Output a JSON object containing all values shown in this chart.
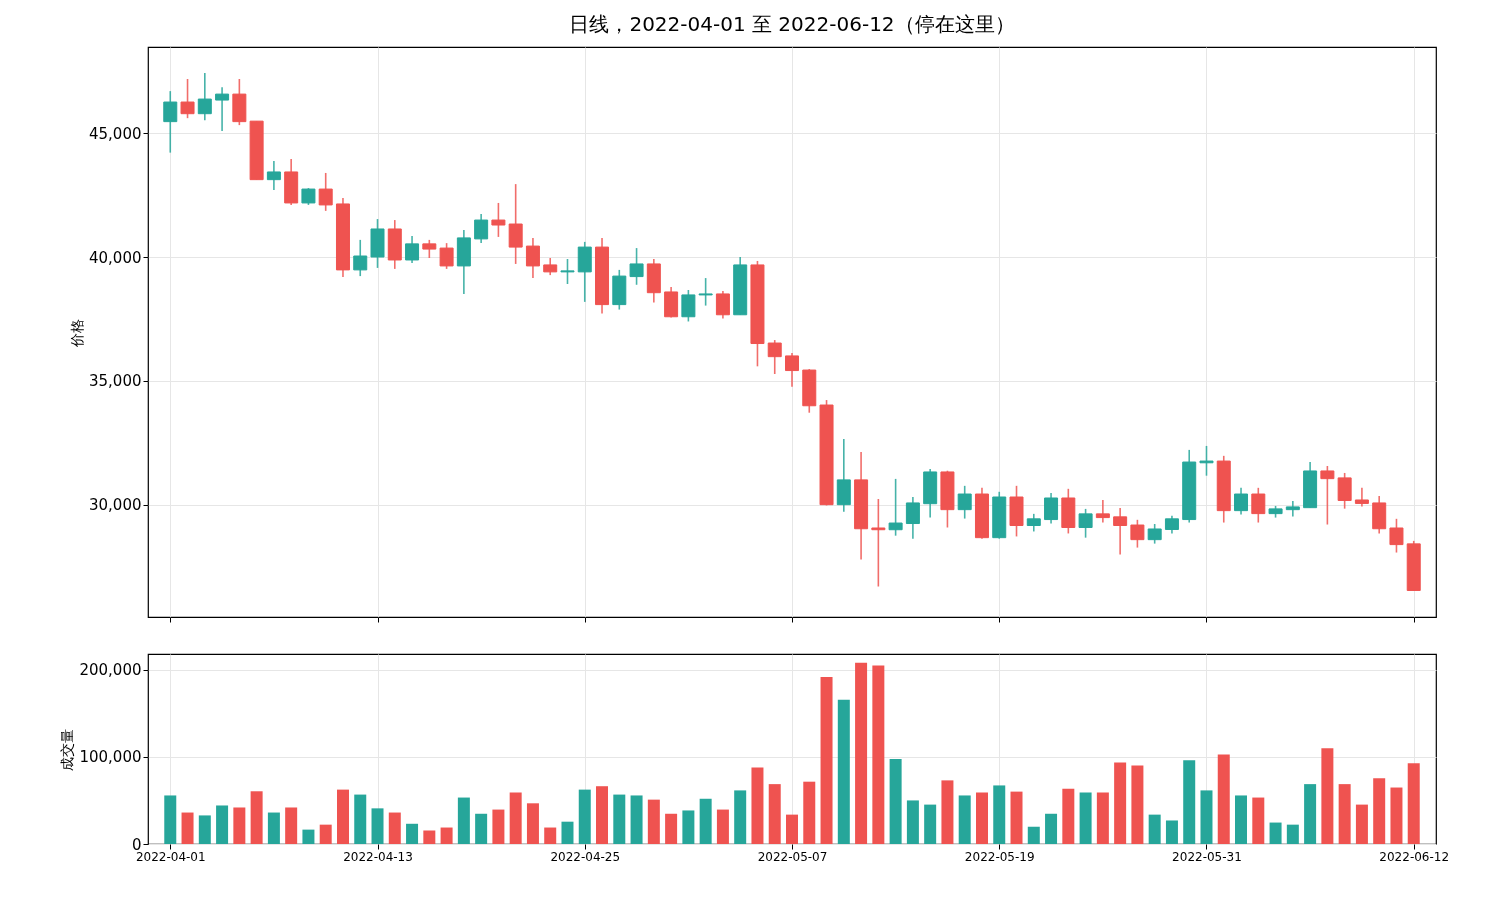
{
  "chart_data": [
    {
      "type": "candlestick",
      "title": "日线，2022-04-01 至 2022-06-12（停在这里）",
      "ylabel": "价格",
      "x": [
        "2022-04-01",
        "2022-04-02",
        "2022-04-03",
        "2022-04-04",
        "2022-04-05",
        "2022-04-06",
        "2022-04-07",
        "2022-04-08",
        "2022-04-09",
        "2022-04-10",
        "2022-04-11",
        "2022-04-12",
        "2022-04-13",
        "2022-04-14",
        "2022-04-15",
        "2022-04-16",
        "2022-04-17",
        "2022-04-18",
        "2022-04-19",
        "2022-04-20",
        "2022-04-21",
        "2022-04-22",
        "2022-04-23",
        "2022-04-24",
        "2022-04-25",
        "2022-04-26",
        "2022-04-27",
        "2022-04-28",
        "2022-04-29",
        "2022-04-30",
        "2022-05-01",
        "2022-05-02",
        "2022-05-03",
        "2022-05-04",
        "2022-05-05",
        "2022-05-06",
        "2022-05-07",
        "2022-05-08",
        "2022-05-09",
        "2022-05-10",
        "2022-05-11",
        "2022-05-12",
        "2022-05-13",
        "2022-05-14",
        "2022-05-15",
        "2022-05-16",
        "2022-05-17",
        "2022-05-18",
        "2022-05-19",
        "2022-05-20",
        "2022-05-21",
        "2022-05-22",
        "2022-05-23",
        "2022-05-24",
        "2022-05-25",
        "2022-05-26",
        "2022-05-27",
        "2022-05-28",
        "2022-05-29",
        "2022-05-30",
        "2022-05-31",
        "2022-06-01",
        "2022-06-02",
        "2022-06-03",
        "2022-06-04",
        "2022-06-05",
        "2022-06-06",
        "2022-06-07",
        "2022-06-08",
        "2022-06-09",
        "2022-06-10",
        "2022-06-11",
        "2022-06-12"
      ],
      "ohlc": [
        [
          45460,
          46690,
          44210,
          46250
        ],
        [
          46250,
          47180,
          45600,
          45780
        ],
        [
          45780,
          47420,
          45520,
          46370
        ],
        [
          46330,
          46850,
          45080,
          46570
        ],
        [
          46570,
          47180,
          45320,
          45460
        ],
        [
          45480,
          45480,
          43120,
          43120
        ],
        [
          43120,
          43870,
          42700,
          43430
        ],
        [
          43430,
          43950,
          42100,
          42180
        ],
        [
          42180,
          42780,
          42100,
          42740
        ],
        [
          42740,
          43390,
          41860,
          42100
        ],
        [
          42140,
          42380,
          39190,
          39480
        ],
        [
          39480,
          40690,
          39230,
          40040
        ],
        [
          40000,
          41530,
          39560,
          41130
        ],
        [
          41130,
          41490,
          39520,
          39880
        ],
        [
          39880,
          40850,
          39760,
          40530
        ],
        [
          40530,
          40690,
          39960,
          40320
        ],
        [
          40360,
          40560,
          39520,
          39640
        ],
        [
          39640,
          41090,
          38510,
          40770
        ],
        [
          40730,
          41730,
          40560,
          41490
        ],
        [
          41490,
          42180,
          40810,
          41290
        ],
        [
          41330,
          42940,
          39720,
          40400
        ],
        [
          40440,
          40770,
          39150,
          39640
        ],
        [
          39680,
          39960,
          39270,
          39400
        ],
        [
          39400,
          39920,
          38910,
          39440
        ],
        [
          39400,
          40610,
          38190,
          40400
        ],
        [
          40400,
          40770,
          37720,
          38080
        ],
        [
          38080,
          39480,
          37880,
          39230
        ],
        [
          39210,
          40360,
          38880,
          39720
        ],
        [
          39720,
          39920,
          38160,
          38560
        ],
        [
          38590,
          38790,
          37560,
          37590
        ],
        [
          37590,
          38670,
          37400,
          38470
        ],
        [
          38470,
          39150,
          38040,
          38510
        ],
        [
          38510,
          38630,
          37520,
          37670
        ],
        [
          37670,
          40000,
          37670,
          39680
        ],
        [
          39680,
          39840,
          35590,
          36510
        ],
        [
          36530,
          36650,
          35280,
          35980
        ],
        [
          36010,
          36130,
          34770,
          35420
        ],
        [
          35440,
          35480,
          33720,
          34000
        ],
        [
          34030,
          34230,
          29980,
          30010
        ],
        [
          30010,
          32660,
          29730,
          31010
        ],
        [
          31010,
          32140,
          27800,
          29040
        ],
        [
          29070,
          30240,
          26710,
          29000
        ],
        [
          29000,
          31050,
          28760,
          29270
        ],
        [
          29250,
          30320,
          28640,
          30080
        ],
        [
          30050,
          31450,
          29490,
          31330
        ],
        [
          31330,
          31380,
          29090,
          29810
        ],
        [
          29810,
          30770,
          29450,
          30440
        ],
        [
          30440,
          30690,
          28640,
          28680
        ],
        [
          28680,
          30530,
          28640,
          30320
        ],
        [
          30320,
          30770,
          28730,
          29170
        ],
        [
          29170,
          29640,
          28930,
          29440
        ],
        [
          29410,
          30480,
          29250,
          30280
        ],
        [
          30280,
          30650,
          28850,
          29090
        ],
        [
          29090,
          29840,
          28680,
          29640
        ],
        [
          29640,
          30200,
          29290,
          29490
        ],
        [
          29520,
          29880,
          28000,
          29170
        ],
        [
          29190,
          29400,
          28280,
          28600
        ],
        [
          28600,
          29230,
          28440,
          29030
        ],
        [
          29010,
          29560,
          28850,
          29440
        ],
        [
          29410,
          32220,
          29290,
          31730
        ],
        [
          31700,
          32380,
          31180,
          31770
        ],
        [
          31770,
          31980,
          29290,
          29770
        ],
        [
          29770,
          30690,
          29610,
          30440
        ],
        [
          30440,
          30690,
          29290,
          29650
        ],
        [
          29650,
          29960,
          29490,
          29840
        ],
        [
          29810,
          30160,
          29530,
          29920
        ],
        [
          29890,
          31730,
          29890,
          31370
        ],
        [
          31370,
          31570,
          29210,
          31060
        ],
        [
          31090,
          31290,
          29850,
          30180
        ],
        [
          30200,
          30690,
          29940,
          30060
        ],
        [
          30080,
          30360,
          28850,
          29040
        ],
        [
          29070,
          29440,
          28080,
          28400
        ],
        [
          28430,
          28550,
          26540,
          26550
        ]
      ],
      "colors": [
        "#26a69a",
        "#ef5350",
        "#26a69a",
        "#26a69a",
        "#ef5350",
        "#ef5350",
        "#26a69a",
        "#ef5350",
        "#26a69a",
        "#ef5350",
        "#ef5350",
        "#26a69a",
        "#26a69a",
        "#ef5350",
        "#26a69a",
        "#ef5350",
        "#ef5350",
        "#26a69a",
        "#26a69a",
        "#ef5350",
        "#ef5350",
        "#ef5350",
        "#ef5350",
        "#26a69a",
        "#26a69a",
        "#ef5350",
        "#26a69a",
        "#26a69a",
        "#ef5350",
        "#ef5350",
        "#26a69a",
        "#26a69a",
        "#ef5350",
        "#26a69a",
        "#ef5350",
        "#ef5350",
        "#ef5350",
        "#ef5350",
        "#ef5350",
        "#26a69a",
        "#ef5350",
        "#ef5350",
        "#26a69a",
        "#26a69a",
        "#26a69a",
        "#ef5350",
        "#26a69a",
        "#ef5350",
        "#26a69a",
        "#ef5350",
        "#26a69a",
        "#26a69a",
        "#ef5350",
        "#26a69a",
        "#ef5350",
        "#ef5350",
        "#ef5350",
        "#26a69a",
        "#26a69a",
        "#26a69a",
        "#26a69a",
        "#ef5350",
        "#26a69a",
        "#ef5350",
        "#26a69a",
        "#26a69a",
        "#26a69a",
        "#ef5350",
        "#ef5350",
        "#ef5350",
        "#ef5350",
        "#ef5350",
        "#ef5350"
      ],
      "xlim": [
        "2022-03-31",
        "2022-06-13"
      ],
      "xticks": [
        "2022-04-01",
        "2022-04-13",
        "2022-04-25",
        "2022-05-07",
        "2022-05-19",
        "2022-05-31",
        "2022-06-12"
      ],
      "ylim": [
        25480,
        48470
      ],
      "yticks": [
        {
          "value": 30000,
          "label": "30,000"
        },
        {
          "value": 35000,
          "label": "35,000"
        },
        {
          "value": 40000,
          "label": "40,000"
        },
        {
          "value": 45000,
          "label": "45,000"
        }
      ],
      "grid": true,
      "tick_labels": "y"
    },
    {
      "type": "bar",
      "ylabel": "成交量",
      "x": [
        "2022-04-01",
        "2022-04-02",
        "2022-04-03",
        "2022-04-04",
        "2022-04-05",
        "2022-04-06",
        "2022-04-07",
        "2022-04-08",
        "2022-04-09",
        "2022-04-10",
        "2022-04-11",
        "2022-04-12",
        "2022-04-13",
        "2022-04-14",
        "2022-04-15",
        "2022-04-16",
        "2022-04-17",
        "2022-04-18",
        "2022-04-19",
        "2022-04-20",
        "2022-04-21",
        "2022-04-22",
        "2022-04-23",
        "2022-04-24",
        "2022-04-25",
        "2022-04-26",
        "2022-04-27",
        "2022-04-28",
        "2022-04-29",
        "2022-04-30",
        "2022-05-01",
        "2022-05-02",
        "2022-05-03",
        "2022-05-04",
        "2022-05-05",
        "2022-05-06",
        "2022-05-07",
        "2022-05-08",
        "2022-05-09",
        "2022-05-10",
        "2022-05-11",
        "2022-05-12",
        "2022-05-13",
        "2022-05-14",
        "2022-05-15",
        "2022-05-16",
        "2022-05-17",
        "2022-05-18",
        "2022-05-19",
        "2022-05-20",
        "2022-05-21",
        "2022-05-22",
        "2022-05-23",
        "2022-05-24",
        "2022-05-25",
        "2022-05-26",
        "2022-05-27",
        "2022-05-28",
        "2022-05-29",
        "2022-05-30",
        "2022-05-31",
        "2022-06-01",
        "2022-06-02",
        "2022-06-03",
        "2022-06-04",
        "2022-06-05",
        "2022-06-06",
        "2022-06-07",
        "2022-06-08",
        "2022-06-09",
        "2022-06-10",
        "2022-06-11",
        "2022-06-12"
      ],
      "values": [
        55700,
        36100,
        32800,
        44200,
        41900,
        60500,
        36100,
        41900,
        16500,
        22200,
        62400,
        56700,
        40900,
        36100,
        23200,
        15500,
        18900,
        53300,
        34700,
        39500,
        59100,
        46700,
        18900,
        25600,
        62400,
        66300,
        56700,
        55700,
        50900,
        34700,
        38500,
        51900,
        39500,
        61500,
        87800,
        68700,
        33700,
        71500,
        191700,
        165400,
        208000,
        204700,
        97400,
        50000,
        45200,
        73000,
        55700,
        59100,
        67200,
        60100,
        19800,
        34700,
        63400,
        59100,
        59100,
        93600,
        90200,
        33700,
        27000,
        96000,
        61500,
        102700,
        55700,
        53300,
        24600,
        22200,
        68700,
        109900,
        68700,
        45200,
        75400,
        64800,
        92600
      ],
      "colors": [
        "#26a69a",
        "#ef5350",
        "#26a69a",
        "#26a69a",
        "#ef5350",
        "#ef5350",
        "#26a69a",
        "#ef5350",
        "#26a69a",
        "#ef5350",
        "#ef5350",
        "#26a69a",
        "#26a69a",
        "#ef5350",
        "#26a69a",
        "#ef5350",
        "#ef5350",
        "#26a69a",
        "#26a69a",
        "#ef5350",
        "#ef5350",
        "#ef5350",
        "#ef5350",
        "#26a69a",
        "#26a69a",
        "#ef5350",
        "#26a69a",
        "#26a69a",
        "#ef5350",
        "#ef5350",
        "#26a69a",
        "#26a69a",
        "#ef5350",
        "#26a69a",
        "#ef5350",
        "#ef5350",
        "#ef5350",
        "#ef5350",
        "#ef5350",
        "#26a69a",
        "#ef5350",
        "#ef5350",
        "#26a69a",
        "#26a69a",
        "#26a69a",
        "#ef5350",
        "#26a69a",
        "#ef5350",
        "#26a69a",
        "#ef5350",
        "#26a69a",
        "#26a69a",
        "#ef5350",
        "#26a69a",
        "#ef5350",
        "#ef5350",
        "#ef5350",
        "#26a69a",
        "#26a69a",
        "#26a69a",
        "#26a69a",
        "#ef5350",
        "#26a69a",
        "#ef5350",
        "#26a69a",
        "#26a69a",
        "#26a69a",
        "#ef5350",
        "#ef5350",
        "#ef5350",
        "#ef5350",
        "#ef5350",
        "#ef5350"
      ],
      "xlim": [
        "2022-03-31",
        "2022-06-13"
      ],
      "xticks": [
        "2022-04-01",
        "2022-04-13",
        "2022-04-25",
        "2022-05-07",
        "2022-05-19",
        "2022-05-31",
        "2022-06-12"
      ],
      "ylim": [
        0,
        218000
      ],
      "yticks": [
        0,
        {
          "value": 100000,
          "label": "100,000"
        },
        {
          "value": 200000,
          "label": "200,000"
        }
      ],
      "grid": true
    }
  ]
}
